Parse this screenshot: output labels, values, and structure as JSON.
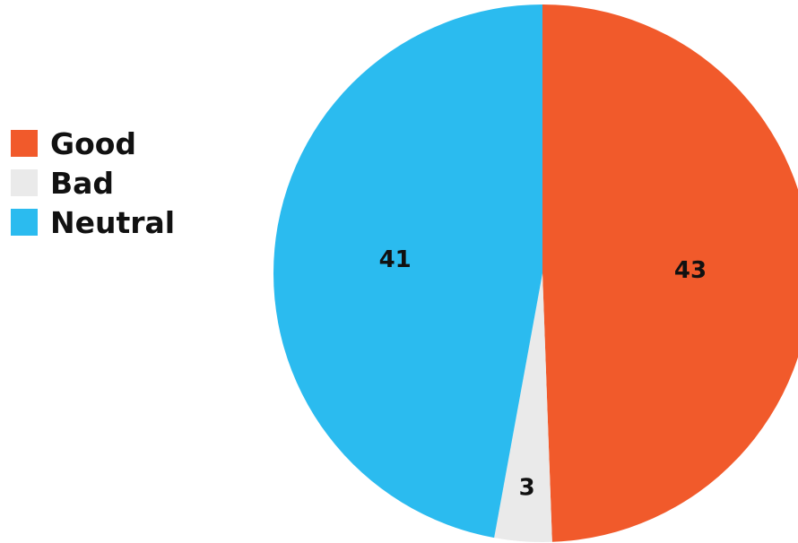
{
  "chart_data": {
    "type": "pie",
    "title": "",
    "categories": [
      "Good",
      "Bad",
      "Neutral"
    ],
    "values": [
      43,
      3,
      41
    ],
    "colors": [
      "#F15A2B",
      "#EAEAEA",
      "#2BBBEF"
    ],
    "legend_position": "left",
    "start_angle": "top (12 o'clock), clockwise"
  }
}
